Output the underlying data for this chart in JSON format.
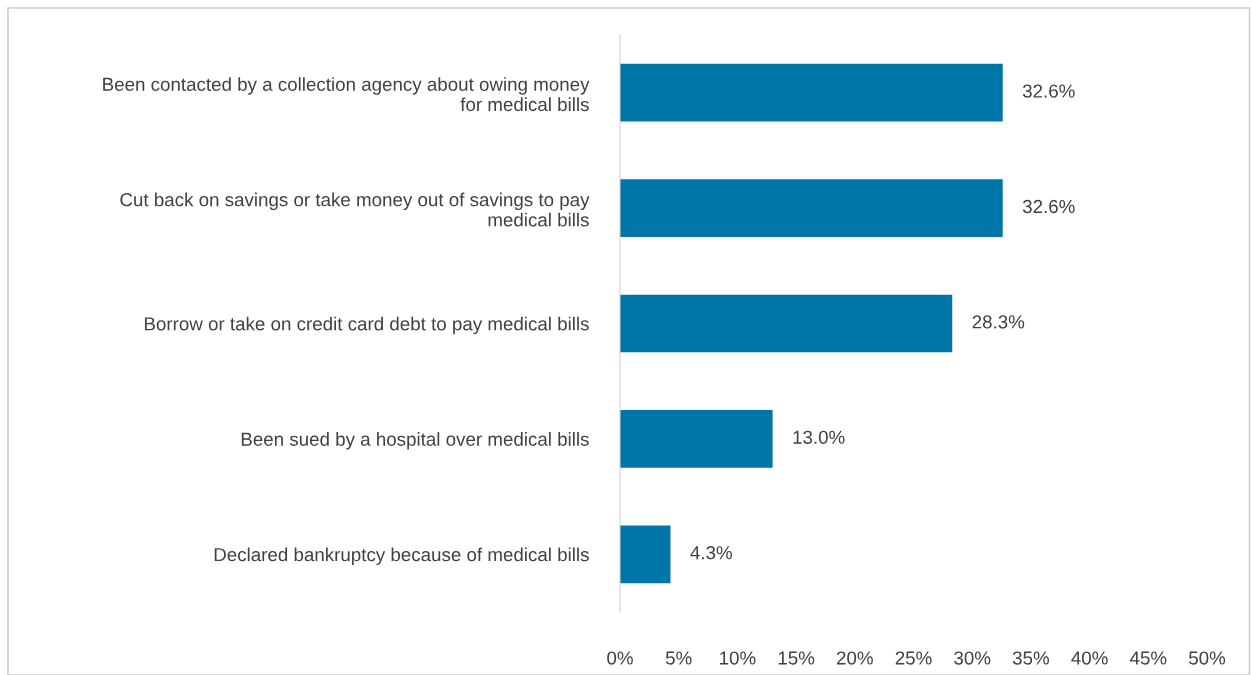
{
  "chart_data": {
    "type": "bar",
    "orientation": "horizontal",
    "categories": [
      "Been contacted by a collection agency about owing money\nfor medical bills",
      "Cut back on savings or take money out of savings to pay\nmedical bills",
      "Borrow or take on credit card debt to pay medical bills",
      "Been sued by a hospital over medical bills",
      "Declared bankruptcy because of medical bills"
    ],
    "values": [
      32.6,
      32.6,
      28.3,
      13.0,
      4.3
    ],
    "value_labels": [
      "32.6%",
      "32.6%",
      "28.3%",
      "13.0%",
      "4.3%"
    ],
    "color": "#0075a8",
    "xlim": [
      0,
      50
    ],
    "xticks": [
      {
        "value": 0,
        "label": "0%"
      },
      {
        "value": 5,
        "label": "5%"
      },
      {
        "value": 10,
        "label": "10%"
      },
      {
        "value": 15,
        "label": "15%"
      },
      {
        "value": 20,
        "label": "20%"
      },
      {
        "value": 25,
        "label": "25%"
      },
      {
        "value": 30,
        "label": "30%"
      },
      {
        "value": 35,
        "label": "35%"
      },
      {
        "value": 40,
        "label": "40%"
      },
      {
        "value": 45,
        "label": "45%"
      },
      {
        "value": 50,
        "label": "50%"
      }
    ],
    "grid": false,
    "legend": false
  }
}
